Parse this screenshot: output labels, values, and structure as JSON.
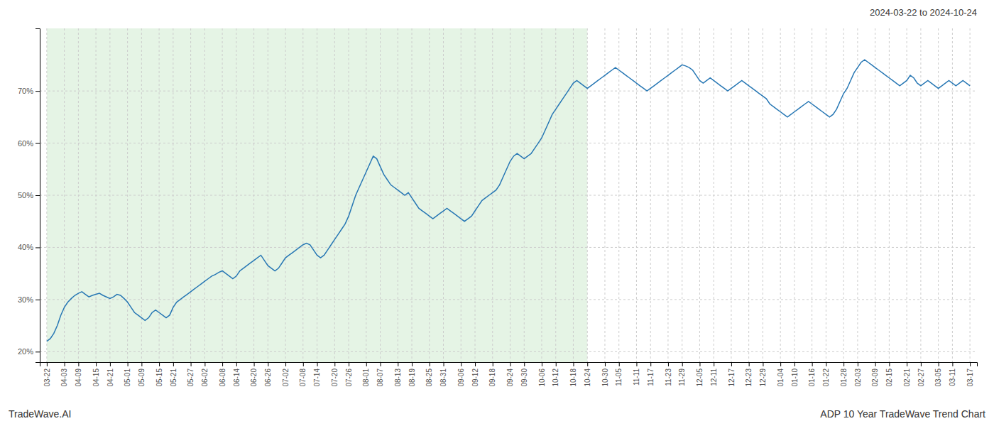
{
  "chart_data": {
    "type": "line",
    "title": "ADP 10 Year TradeWave Trend Chart",
    "subtitle": "2024-03-22 to 2024-10-24",
    "annotations": [
      "TradeWave.AI"
    ],
    "color": "#2777b4",
    "grid": true,
    "shade": {
      "from": "03-22",
      "to": "10-24",
      "color": "#d4ecd4"
    },
    "ylim": [
      18,
      82
    ],
    "yticks": [
      {
        "value": 20,
        "label": "20%"
      },
      {
        "value": 30,
        "label": "30%"
      },
      {
        "value": 40,
        "label": "40%"
      },
      {
        "value": 50,
        "label": "50%"
      },
      {
        "value": 60,
        "label": "60%"
      },
      {
        "value": 70,
        "label": "70%"
      }
    ],
    "categories": [
      "03-22",
      null,
      null,
      null,
      null,
      "04-03",
      null,
      null,
      null,
      "04-09",
      null,
      null,
      null,
      null,
      "04-15",
      null,
      null,
      null,
      "04-21",
      null,
      null,
      null,
      null,
      "05-01",
      null,
      null,
      null,
      "05-09",
      null,
      null,
      null,
      null,
      "05-15",
      null,
      null,
      null,
      "05-21",
      null,
      null,
      null,
      null,
      "05-27",
      null,
      null,
      null,
      "06-02",
      null,
      null,
      null,
      null,
      "06-08",
      null,
      null,
      null,
      "06-14",
      null,
      null,
      null,
      null,
      "06-20",
      null,
      null,
      null,
      "06-26",
      null,
      null,
      null,
      null,
      "07-02",
      null,
      null,
      null,
      null,
      "07-08",
      null,
      null,
      null,
      "07-14",
      null,
      null,
      null,
      null,
      "07-20",
      null,
      null,
      null,
      "07-26",
      null,
      null,
      null,
      null,
      "08-01",
      null,
      null,
      null,
      "08-07",
      null,
      null,
      null,
      null,
      "08-13",
      null,
      null,
      null,
      "08-19",
      null,
      null,
      null,
      null,
      "08-25",
      null,
      null,
      null,
      "08-31",
      null,
      null,
      null,
      null,
      "09-06",
      null,
      null,
      null,
      "09-12",
      null,
      null,
      null,
      null,
      "09-18",
      null,
      null,
      null,
      null,
      "09-24",
      null,
      null,
      null,
      "09-30",
      null,
      null,
      null,
      null,
      "10-06",
      null,
      null,
      null,
      "10-12",
      null,
      null,
      null,
      null,
      "10-18",
      null,
      null,
      null,
      "10-24",
      null,
      null,
      null,
      null,
      "10-30",
      null,
      null,
      null,
      "11-05",
      null,
      null,
      null,
      null,
      "11-11",
      null,
      null,
      null,
      "11-17",
      null,
      null,
      null,
      null,
      "11-23",
      null,
      null,
      null,
      "11-29",
      null,
      null,
      null,
      null,
      "12-05",
      null,
      null,
      null,
      "12-11",
      null,
      null,
      null,
      null,
      "12-17",
      null,
      null,
      null,
      null,
      "12-23",
      null,
      null,
      null,
      "12-29",
      null,
      null,
      null,
      null,
      "01-04",
      null,
      null,
      null,
      "01-10",
      null,
      null,
      null,
      null,
      "01-16",
      null,
      null,
      null,
      "01-22",
      null,
      null,
      null,
      null,
      "01-28",
      null,
      null,
      null,
      "02-03",
      null,
      null,
      null,
      null,
      "02-09",
      null,
      null,
      null,
      "02-15",
      null,
      null,
      null,
      null,
      "02-21",
      null,
      null,
      null,
      "02-27",
      null,
      null,
      null,
      null,
      "03-05",
      null,
      null,
      null,
      "03-11",
      null,
      null,
      null,
      null,
      "03-17"
    ],
    "values": [
      22.0,
      22.5,
      23.5,
      25.0,
      27.0,
      28.5,
      29.5,
      30.2,
      30.8,
      31.2,
      31.5,
      31.0,
      30.5,
      30.8,
      31.0,
      31.2,
      30.8,
      30.5,
      30.2,
      30.5,
      31.0,
      30.8,
      30.2,
      29.5,
      28.5,
      27.5,
      27.0,
      26.5,
      26.0,
      26.5,
      27.5,
      28.0,
      27.5,
      27.0,
      26.5,
      27.0,
      28.5,
      29.5,
      30.0,
      30.5,
      31.0,
      31.5,
      32.0,
      32.5,
      33.0,
      33.5,
      34.0,
      34.5,
      34.8,
      35.2,
      35.5,
      35.0,
      34.5,
      34.0,
      34.5,
      35.5,
      36.0,
      36.5,
      37.0,
      37.5,
      38.0,
      38.5,
      37.5,
      36.5,
      36.0,
      35.5,
      36.0,
      37.0,
      38.0,
      38.5,
      39.0,
      39.5,
      40.0,
      40.5,
      40.8,
      40.5,
      39.5,
      38.5,
      38.0,
      38.5,
      39.5,
      40.5,
      41.5,
      42.5,
      43.5,
      44.5,
      46.0,
      48.0,
      50.0,
      51.5,
      53.0,
      54.5,
      56.0,
      57.5,
      57.0,
      55.5,
      54.0,
      53.0,
      52.0,
      51.5,
      51.0,
      50.5,
      50.0,
      50.5,
      49.5,
      48.5,
      47.5,
      47.0,
      46.5,
      46.0,
      45.5,
      46.0,
      46.5,
      47.0,
      47.5,
      47.0,
      46.5,
      46.0,
      45.5,
      45.0,
      45.5,
      46.0,
      47.0,
      48.0,
      49.0,
      49.5,
      50.0,
      50.5,
      51.0,
      52.0,
      53.5,
      55.0,
      56.5,
      57.5,
      58.0,
      57.5,
      57.0,
      57.5,
      58.0,
      59.0,
      60.0,
      61.0,
      62.5,
      64.0,
      65.5,
      66.5,
      67.5,
      68.5,
      69.5,
      70.5,
      71.5,
      72.0,
      71.5,
      71.0,
      70.5,
      71.0,
      71.5,
      72.0,
      72.5,
      73.0,
      73.5,
      74.0,
      74.5,
      74.0,
      73.5,
      73.0,
      72.5,
      72.0,
      71.5,
      71.0,
      70.5,
      70.0,
      70.5,
      71.0,
      71.5,
      72.0,
      72.5,
      73.0,
      73.5,
      74.0,
      74.5,
      75.0,
      74.8,
      74.5,
      74.0,
      73.0,
      72.0,
      71.5,
      72.0,
      72.5,
      72.0,
      71.5,
      71.0,
      70.5,
      70.0,
      70.5,
      71.0,
      71.5,
      72.0,
      71.5,
      71.0,
      70.5,
      70.0,
      69.5,
      69.0,
      68.5,
      67.5,
      67.0,
      66.5,
      66.0,
      65.5,
      65.0,
      65.5,
      66.0,
      66.5,
      67.0,
      67.5,
      68.0,
      67.5,
      67.0,
      66.5,
      66.0,
      65.5,
      65.0,
      65.5,
      66.5,
      68.0,
      69.5,
      70.5,
      72.0,
      73.5,
      74.5,
      75.5,
      76.0,
      75.5,
      75.0,
      74.5,
      74.0,
      73.5,
      73.0,
      72.5,
      72.0,
      71.5,
      71.0,
      71.5,
      72.0,
      73.0,
      72.5,
      71.5,
      71.0,
      71.5,
      72.0,
      71.5,
      71.0,
      70.5,
      71.0,
      71.5,
      72.0,
      71.5,
      71.0,
      71.5,
      72.0,
      71.5,
      71.0
    ]
  }
}
